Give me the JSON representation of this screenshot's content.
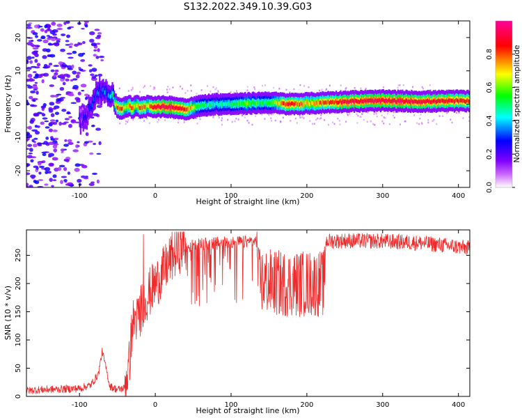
{
  "title": "S132.2022.349.10.39.G03",
  "colors": {
    "snr_line": "#ee2a2a",
    "colormap": [
      "#ffffff",
      "#cc66ff",
      "#7f00ff",
      "#0000ff",
      "#00ffff",
      "#00ff00",
      "#ffff00",
      "#ff0000",
      "#ff0099"
    ]
  },
  "chart_data": [
    {
      "type": "heatmap",
      "title": "S132.2022.349.10.39.G03",
      "xlabel": "Height of straight line (km)",
      "ylabel": "Frequency (Hz)",
      "xlim": [
        -170,
        415
      ],
      "ylim": [
        -25,
        25
      ],
      "xticks": [
        -100,
        0,
        100,
        200,
        300,
        400
      ],
      "yticks": [
        -20,
        -10,
        0,
        10,
        20
      ],
      "colorbar": {
        "label": "Normalized spectral amplitude",
        "range": [
          0,
          1
        ],
        "ticks": [
          0.0,
          0.2,
          0.4,
          0.6,
          0.8
        ],
        "colormap": "rainbow"
      },
      "ridge": {
        "x": [
          -100,
          -90,
          -80,
          -70,
          -60,
          -55,
          -50,
          -45,
          -40,
          -35,
          -30,
          -25,
          -20,
          -10,
          0,
          20,
          40,
          60,
          80,
          100,
          120,
          150,
          175,
          200,
          250,
          300,
          350,
          415
        ],
        "freq": [
          -5,
          -3,
          3,
          4,
          3.5,
          1,
          -1,
          -1.5,
          -0.8,
          -0.5,
          -1.2,
          -0.5,
          -1,
          -0.5,
          -0.8,
          -0.8,
          -1.5,
          -0.5,
          0,
          0,
          0.2,
          0.5,
          0,
          0.2,
          0.8,
          1,
          0.8,
          1
        ],
        "amplitude": [
          0.2,
          0.25,
          0.3,
          0.35,
          0.35,
          0.5,
          0.8,
          0.85,
          0.6,
          0.7,
          0.85,
          0.6,
          0.8,
          0.7,
          0.9,
          0.95,
          0.85,
          0.5,
          0.45,
          0.5,
          0.6,
          0.5,
          0.9,
          0.7,
          0.9,
          0.95,
          0.9,
          0.85
        ]
      }
    },
    {
      "type": "line",
      "xlabel": "Height of straight line (km)",
      "ylabel": "SNR (10 * v/v)",
      "xlim": [
        -170,
        415
      ],
      "ylim": [
        0,
        295
      ],
      "xticks": [
        -100,
        0,
        100,
        200,
        300,
        400
      ],
      "yticks": [
        0,
        50,
        100,
        150,
        200,
        250
      ],
      "series": [
        {
          "x": [
            -170,
            -150,
            -120,
            -100,
            -85,
            -75,
            -70,
            -65,
            -60,
            -50,
            -40,
            -35,
            -30,
            -25,
            -20,
            -15,
            -10,
            -5,
            0,
            10,
            20,
            30,
            40,
            50,
            60,
            80,
            100,
            120,
            134,
            136,
            160,
            180,
            200,
            223,
            225,
            250,
            300,
            350,
            400,
            415
          ],
          "y": [
            10,
            12,
            13,
            14,
            20,
            40,
            80,
            50,
            18,
            12,
            15,
            40,
            120,
            130,
            140,
            160,
            170,
            180,
            190,
            210,
            235,
            250,
            262,
            268,
            270,
            272,
            273,
            274,
            275,
            205,
            200,
            200,
            200,
            200,
            275,
            276,
            275,
            272,
            265,
            262
          ]
        }
      ]
    }
  ]
}
